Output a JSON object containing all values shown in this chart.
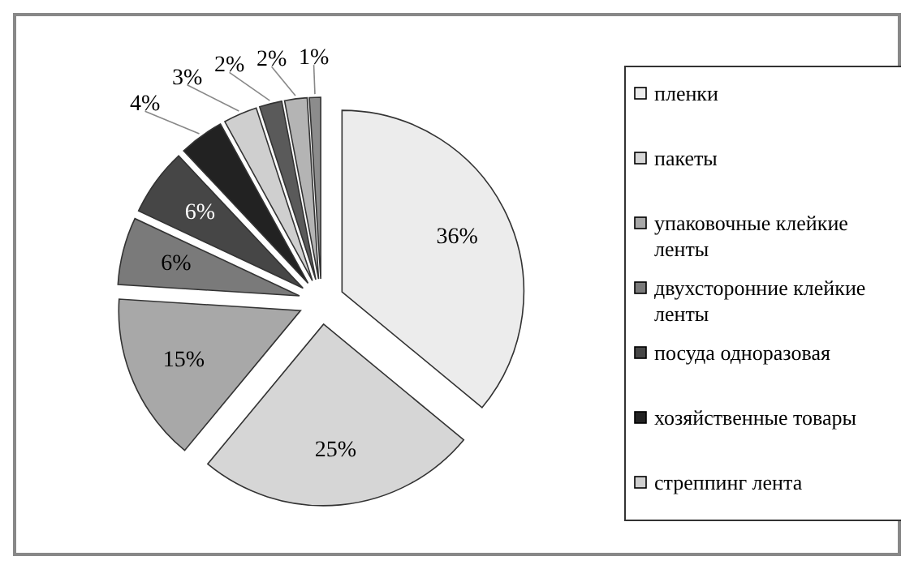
{
  "chart_data": {
    "type": "pie",
    "categories": [
      "пленки",
      "пакеты",
      "упаковочные клейкие ленты",
      "двухсторонние клейкие ленты",
      "посуда одноразовая",
      "хозяйственные товары",
      "стреппинг лента",
      null,
      null,
      null
    ],
    "values": [
      36,
      25,
      15,
      6,
      6,
      4,
      3,
      2,
      2,
      1
    ],
    "colors": [
      "#ececec",
      "#d6d6d6",
      "#a8a8a8",
      "#7a7a7a",
      "#464646",
      "#222222",
      "#cfcfcf",
      "#5a5a5a",
      "#b4b4b4",
      "#8c8c8c"
    ],
    "value_labels": [
      "36%",
      "25%",
      "15%",
      "6%",
      "6%",
      "4%",
      "3%",
      "2%",
      "2%",
      "1%"
    ],
    "legend": "right"
  }
}
